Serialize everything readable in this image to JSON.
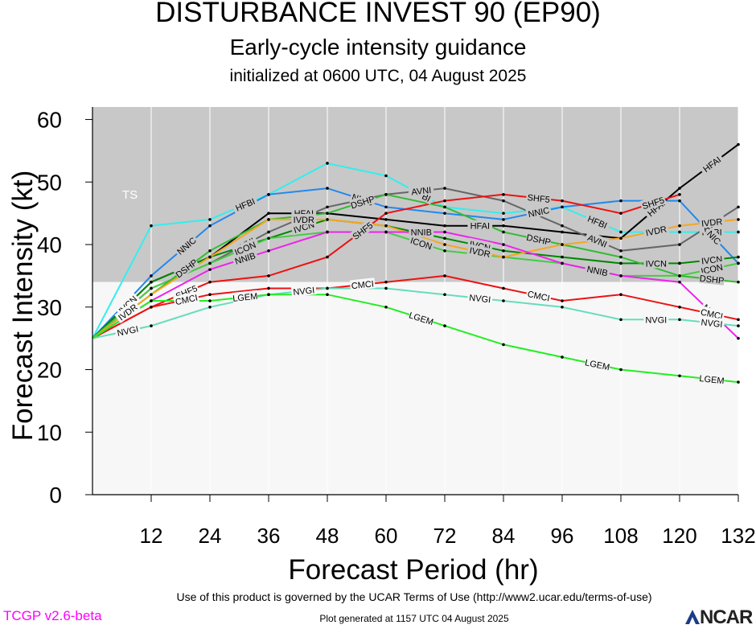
{
  "header": {
    "title": "DISTURBANCE INVEST 90 (EP90)",
    "subtitle": "Early-cycle intensity guidance",
    "initialized": "initialized at 0600 UTC, 04 August 2025"
  },
  "footer": {
    "terms": "Use of this product is governed by the UCAR Terms of Use (http://www2.ucar.edu/terms-of-use)",
    "generated": "Plot generated at 1157 UTC   04 August 2025",
    "version": "TCGP v2.6-beta",
    "logo": "NCAR"
  },
  "chart_data": {
    "type": "line",
    "xlabel": "Forecast Period (hr)",
    "ylabel": "Forecast Intensity (kt)",
    "xlim": [
      0,
      132
    ],
    "ylim": [
      0,
      62
    ],
    "xticks": [
      12,
      24,
      36,
      48,
      60,
      72,
      84,
      96,
      108,
      120,
      132
    ],
    "yticks": [
      0,
      10,
      20,
      30,
      40,
      50,
      60
    ],
    "grid": "vertical",
    "bands": [
      {
        "label": "TS",
        "from": 34,
        "to": 62,
        "color": "#c8c8c8"
      },
      {
        "label": "",
        "from": 0,
        "to": 34,
        "color": "#f7f7f7"
      }
    ],
    "series": [
      {
        "name": "HFBI",
        "color": "#33eeee",
        "x": [
          0,
          12,
          24,
          36,
          48,
          60,
          72,
          84,
          96,
          108,
          120,
          132
        ],
        "y": [
          25,
          43,
          44,
          48,
          53,
          51,
          46,
          45,
          46,
          42,
          42,
          42
        ]
      },
      {
        "name": "NNIC",
        "color": "#2288ee",
        "x": [
          0,
          12,
          24,
          36,
          48,
          60,
          72,
          84,
          96,
          108,
          120,
          132
        ],
        "y": [
          25,
          35,
          43,
          48,
          49,
          46,
          45,
          44,
          46,
          47,
          47,
          37
        ]
      },
      {
        "name": "HFAI",
        "color": "#000000",
        "x": [
          0,
          12,
          24,
          36,
          48,
          60,
          72,
          84,
          96,
          108,
          120,
          132
        ],
        "y": [
          25,
          34,
          38,
          45,
          45,
          44,
          43,
          43,
          42,
          41,
          49,
          56
        ]
      },
      {
        "name": "AVNI",
        "color": "#666666",
        "x": [
          0,
          12,
          24,
          36,
          48,
          60,
          72,
          84,
          96,
          108,
          120,
          132
        ],
        "y": [
          25,
          33,
          37,
          42,
          46,
          48,
          49,
          47,
          43,
          39,
          40,
          46
        ]
      },
      {
        "name": "SHF5",
        "color": "#ee1111",
        "x": [
          0,
          12,
          24,
          36,
          48,
          60,
          72,
          84,
          96,
          108,
          120
        ],
        "y": [
          25,
          30,
          34,
          35,
          38,
          45,
          47,
          48,
          47,
          45,
          48
        ]
      },
      {
        "name": "IVCN",
        "color": "#008800",
        "x": [
          0,
          12,
          24,
          36,
          48,
          60,
          72,
          84,
          96,
          108,
          120,
          132
        ],
        "y": [
          25,
          34,
          38,
          41,
          44,
          43,
          41,
          39,
          38,
          37,
          37,
          38
        ]
      },
      {
        "name": "ICON",
        "color": "#44cc44",
        "x": [
          0,
          12,
          24,
          36,
          48,
          60,
          72,
          84,
          96,
          108,
          120,
          132
        ],
        "y": [
          25,
          33,
          37,
          41,
          42,
          42,
          39,
          38,
          37,
          35,
          35,
          37
        ]
      },
      {
        "name": "DSHP",
        "color": "#33bb33",
        "x": [
          0,
          12,
          24,
          36,
          48,
          60,
          72,
          84,
          96,
          108,
          120,
          132
        ],
        "y": [
          25,
          32,
          39,
          44,
          45,
          48,
          46,
          42,
          40,
          38,
          35,
          34
        ]
      },
      {
        "name": "IVDR",
        "color": "#f5a623",
        "x": [
          0,
          12,
          24,
          36,
          48,
          60,
          72,
          84,
          96,
          108,
          120,
          132
        ],
        "y": [
          25,
          32,
          38,
          44,
          44,
          43,
          40,
          38,
          40,
          41,
          43,
          44
        ]
      },
      {
        "name": "NNIB",
        "color": "#ee22ee",
        "x": [
          0,
          12,
          24,
          36,
          48,
          60,
          72,
          84,
          96,
          108,
          120,
          132
        ],
        "y": [
          25,
          31,
          36,
          39,
          42,
          42,
          42,
          40,
          37,
          35,
          34,
          25
        ]
      },
      {
        "name": "CMCI",
        "color": "#ee1111",
        "x": [
          0,
          12,
          24,
          36,
          48,
          60,
          72,
          84,
          96,
          108,
          120,
          132
        ],
        "y": [
          25,
          30,
          32,
          33,
          33,
          34,
          35,
          33,
          31,
          32,
          30,
          28
        ]
      },
      {
        "name": "NVGI",
        "color": "#66ddbb",
        "x": [
          0,
          12,
          24,
          36,
          48,
          60,
          72,
          84,
          96,
          108,
          120,
          132
        ],
        "y": [
          25,
          27,
          30,
          32,
          33,
          33,
          32,
          31,
          30,
          28,
          28,
          27
        ]
      },
      {
        "name": "LGEM",
        "color": "#22ee22",
        "x": [
          0,
          12,
          24,
          36,
          48,
          60,
          72,
          84,
          96,
          108,
          120,
          132
        ],
        "y": [
          25,
          31,
          31,
          32,
          32,
          30,
          27,
          24,
          22,
          20,
          19,
          18
        ]
      }
    ]
  }
}
